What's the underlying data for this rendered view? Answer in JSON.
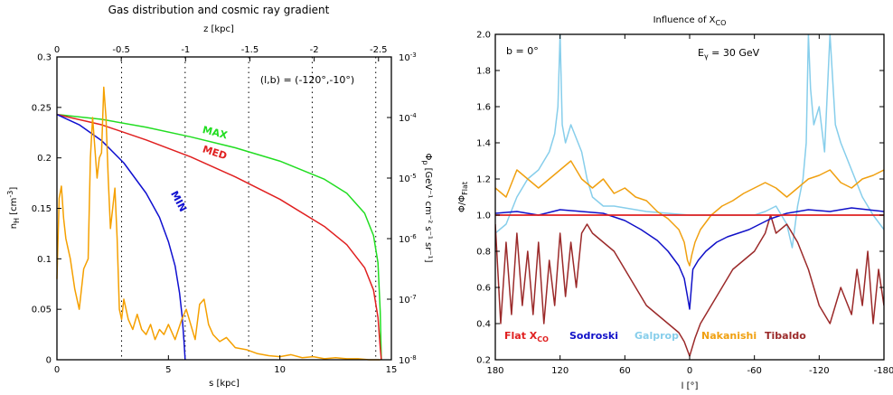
{
  "colors": {
    "max": "#22dd22",
    "med": "#e02020",
    "min": "#1010d0",
    "gas": "#f5a000",
    "flat": "#e02020",
    "sodroski": "#1010c8",
    "galprop": "#87ceeb",
    "nakanishi": "#f0a010",
    "tibaldo": "#9b2a2a"
  },
  "chart_data": [
    {
      "type": "line",
      "title": "Gas distribution and cosmic ray gradient",
      "annotation": "(l,b) = (-120°,-10°)",
      "xlabel": "s [kpc]",
      "ylabel_main": "n",
      "ylabel_sub": "H",
      "ylabel_units": " [cm",
      "ylabel_sup": "-3",
      "ylabel_close": "]",
      "x2label": "z [kpc]",
      "y2label_main": "Φ",
      "y2label_sub": "p",
      "y2label_rest": " [GeV⁻¹ cm⁻² s⁻¹ sr⁻¹]",
      "xlim": [
        0,
        15
      ],
      "ylim": [
        0,
        0.3
      ],
      "x_ticks": [
        0,
        5,
        10,
        15
      ],
      "y_ticks": [
        0,
        0.05,
        0.1,
        0.15,
        0.2,
        0.25,
        0.3
      ],
      "x2_ticks": [
        0,
        -0.5,
        -1,
        -1.5,
        -2,
        -2.5
      ],
      "x2_range": [
        0,
        -2.6
      ],
      "y2_ticks": [
        "10-8",
        "10-7",
        "10-6",
        "10-5",
        "10-4",
        "10-3"
      ],
      "y2_exponents": [
        -8,
        -7,
        -6,
        -5,
        -4,
        -3
      ],
      "y2_base": "10",
      "y2_lim": [
        -8,
        -3
      ],
      "grid_x": [
        2.9,
        5.75,
        8.6,
        11.45,
        14.3
      ],
      "series": [
        {
          "name": "MAX",
          "label_at": [
            6.5,
            0.225
          ],
          "rotate": 14,
          "x": [
            0,
            2,
            4,
            6,
            8,
            10,
            12,
            13,
            13.8,
            14.2,
            14.4,
            14.5,
            14.55
          ],
          "y": [
            -3.95,
            -4.03,
            -4.16,
            -4.32,
            -4.5,
            -4.72,
            -5.02,
            -5.25,
            -5.58,
            -5.95,
            -6.4,
            -7.2,
            -8.0
          ]
        },
        {
          "name": "MED",
          "label_at": [
            6.5,
            0.206
          ],
          "rotate": 18,
          "x": [
            0,
            2,
            4,
            6,
            8,
            10,
            12,
            13,
            13.8,
            14.2,
            14.4,
            14.5,
            14.55
          ],
          "y": [
            -3.95,
            -4.12,
            -4.37,
            -4.65,
            -4.98,
            -5.35,
            -5.8,
            -6.1,
            -6.48,
            -6.85,
            -7.3,
            -7.8,
            -8.0
          ]
        },
        {
          "name": "MIN",
          "label_at": [
            5.1,
            0.165
          ],
          "rotate": 62,
          "x": [
            0,
            1,
            2,
            3,
            4,
            4.6,
            5.0,
            5.3,
            5.5,
            5.62,
            5.7,
            5.75
          ],
          "y": [
            -3.95,
            -4.12,
            -4.38,
            -4.75,
            -5.25,
            -5.65,
            -6.05,
            -6.45,
            -6.9,
            -7.3,
            -7.7,
            -8.0
          ]
        },
        {
          "name": "gas",
          "x": [
            0,
            0.1,
            0.2,
            0.3,
            0.4,
            0.5,
            0.6,
            0.8,
            1.0,
            1.2,
            1.4,
            1.5,
            1.6,
            1.8,
            1.9,
            2.0,
            2.1,
            2.2,
            2.3,
            2.4,
            2.5,
            2.6,
            2.7,
            2.8,
            2.9,
            3.0,
            3.2,
            3.4,
            3.6,
            3.8,
            4.0,
            4.2,
            4.4,
            4.6,
            4.8,
            5.0,
            5.3,
            5.6,
            5.8,
            6.0,
            6.2,
            6.4,
            6.6,
            6.8,
            7.0,
            7.3,
            7.6,
            8.0,
            8.5,
            9.0,
            9.5,
            10.0,
            10.5,
            11.0,
            11.5,
            12.0,
            12.5,
            13.0,
            13.5,
            14.0,
            14.5
          ],
          "y": [
            0.08,
            0.16,
            0.172,
            0.14,
            0.12,
            0.11,
            0.1,
            0.07,
            0.05,
            0.09,
            0.1,
            0.2,
            0.24,
            0.18,
            0.2,
            0.205,
            0.27,
            0.24,
            0.18,
            0.13,
            0.15,
            0.17,
            0.12,
            0.05,
            0.04,
            0.06,
            0.04,
            0.03,
            0.045,
            0.03,
            0.025,
            0.035,
            0.02,
            0.03,
            0.025,
            0.035,
            0.02,
            0.04,
            0.05,
            0.035,
            0.02,
            0.055,
            0.06,
            0.035,
            0.025,
            0.018,
            0.022,
            0.012,
            0.01,
            0.006,
            0.004,
            0.003,
            0.005,
            0.002,
            0.003,
            0.001,
            0.002,
            0.001,
            0.001,
            0,
            0
          ]
        }
      ]
    },
    {
      "type": "line",
      "title_main": "Influence of X",
      "title_sub": "CO",
      "ann_b": "b = 0°",
      "ann_e_main": "E",
      "ann_e_sub": "γ",
      "ann_e_val": " = 30 GeV",
      "xlabel": "l [°]",
      "ylabel_main": "Φ/Φ",
      "ylabel_sub": "Flat",
      "xlim": [
        180,
        -180
      ],
      "ylim": [
        0.2,
        2.0
      ],
      "x_ticks": [
        180,
        120,
        60,
        0,
        -60,
        -120,
        -180
      ],
      "y_ticks": [
        0.2,
        0.4,
        0.6,
        0.8,
        1.0,
        1.2,
        1.4,
        1.6,
        1.8,
        2.0
      ],
      "legend": [
        {
          "name": "Flat X",
          "sub": "CO",
          "color_key": "flat"
        },
        {
          "name": "Sodroski",
          "sub": "",
          "color_key": "sodroski"
        },
        {
          "name": "Galprop",
          "sub": "",
          "color_key": "galprop"
        },
        {
          "name": "Nakanishi",
          "sub": "",
          "color_key": "nakanishi"
        },
        {
          "name": "Tibaldo",
          "sub": "",
          "color_key": "tibaldo"
        }
      ],
      "series": [
        {
          "name": "Flat X_CO",
          "color_key": "flat",
          "x": [
            180,
            -180
          ],
          "y": [
            1.0,
            1.0
          ]
        },
        {
          "name": "Sodroski",
          "color_key": "sodroski",
          "x": [
            180,
            160,
            140,
            120,
            100,
            80,
            60,
            45,
            30,
            20,
            10,
            5,
            2,
            0,
            -3,
            -8,
            -15,
            -25,
            -35,
            -45,
            -55,
            -65,
            -75,
            -90,
            -110,
            -130,
            -150,
            -165,
            -180
          ],
          "y": [
            1.01,
            1.02,
            1.0,
            1.03,
            1.02,
            1.01,
            0.97,
            0.92,
            0.86,
            0.8,
            0.72,
            0.65,
            0.55,
            0.48,
            0.7,
            0.75,
            0.8,
            0.85,
            0.88,
            0.9,
            0.92,
            0.95,
            0.98,
            1.01,
            1.03,
            1.02,
            1.04,
            1.03,
            1.02
          ]
        },
        {
          "name": "Galprop",
          "color_key": "galprop",
          "x": [
            180,
            170,
            160,
            150,
            140,
            130,
            125,
            122,
            120,
            118,
            115,
            110,
            100,
            95,
            90,
            80,
            70,
            60,
            40,
            20,
            0,
            -20,
            -40,
            -60,
            -70,
            -80,
            -90,
            -95,
            -100,
            -105,
            -108,
            -110,
            -112,
            -115,
            -120,
            -125,
            -130,
            -135,
            -140,
            -150,
            -160,
            -170,
            -180
          ],
          "y": [
            0.9,
            0.95,
            1.1,
            1.2,
            1.25,
            1.35,
            1.45,
            1.6,
            2.0,
            1.5,
            1.4,
            1.5,
            1.35,
            1.2,
            1.1,
            1.05,
            1.05,
            1.04,
            1.02,
            1.01,
            1.0,
            1.0,
            1.0,
            1.0,
            1.02,
            1.05,
            0.95,
            0.82,
            1.05,
            1.2,
            1.4,
            2.0,
            1.7,
            1.5,
            1.6,
            1.35,
            2.0,
            1.5,
            1.4,
            1.25,
            1.1,
            1.0,
            0.92
          ]
        },
        {
          "name": "Nakanishi",
          "color_key": "nakanishi",
          "x": [
            180,
            170,
            160,
            150,
            140,
            130,
            120,
            110,
            100,
            90,
            80,
            70,
            60,
            50,
            40,
            30,
            20,
            10,
            5,
            2,
            0,
            -2,
            -5,
            -10,
            -20,
            -30,
            -40,
            -50,
            -60,
            -70,
            -80,
            -90,
            -100,
            -110,
            -120,
            -130,
            -140,
            -150,
            -160,
            -170,
            -180
          ],
          "y": [
            1.15,
            1.1,
            1.25,
            1.2,
            1.15,
            1.2,
            1.25,
            1.3,
            1.2,
            1.15,
            1.2,
            1.12,
            1.15,
            1.1,
            1.08,
            1.02,
            0.98,
            0.92,
            0.85,
            0.75,
            0.72,
            0.78,
            0.85,
            0.92,
            1.0,
            1.05,
            1.08,
            1.12,
            1.15,
            1.18,
            1.15,
            1.1,
            1.15,
            1.2,
            1.22,
            1.25,
            1.18,
            1.15,
            1.2,
            1.22,
            1.25
          ]
        },
        {
          "name": "Tibaldo",
          "color_key": "tibaldo",
          "x": [
            180,
            175,
            170,
            165,
            160,
            155,
            150,
            145,
            140,
            135,
            130,
            125,
            120,
            115,
            110,
            105,
            100,
            95,
            90,
            80,
            70,
            60,
            50,
            40,
            30,
            20,
            10,
            5,
            0,
            -5,
            -10,
            -20,
            -30,
            -40,
            -50,
            -60,
            -70,
            -75,
            -80,
            -90,
            -100,
            -110,
            -120,
            -130,
            -140,
            -150,
            -155,
            -160,
            -165,
            -170,
            -175,
            -180
          ],
          "y": [
            0.95,
            0.4,
            0.85,
            0.45,
            0.9,
            0.5,
            0.8,
            0.45,
            0.85,
            0.4,
            0.75,
            0.5,
            0.9,
            0.55,
            0.85,
            0.6,
            0.9,
            0.95,
            0.9,
            0.85,
            0.8,
            0.7,
            0.6,
            0.5,
            0.45,
            0.4,
            0.35,
            0.3,
            0.22,
            0.32,
            0.4,
            0.5,
            0.6,
            0.7,
            0.75,
            0.8,
            0.9,
            1.0,
            0.9,
            0.95,
            0.85,
            0.7,
            0.5,
            0.4,
            0.6,
            0.45,
            0.7,
            0.5,
            0.8,
            0.4,
            0.7,
            0.5
          ]
        }
      ]
    }
  ]
}
